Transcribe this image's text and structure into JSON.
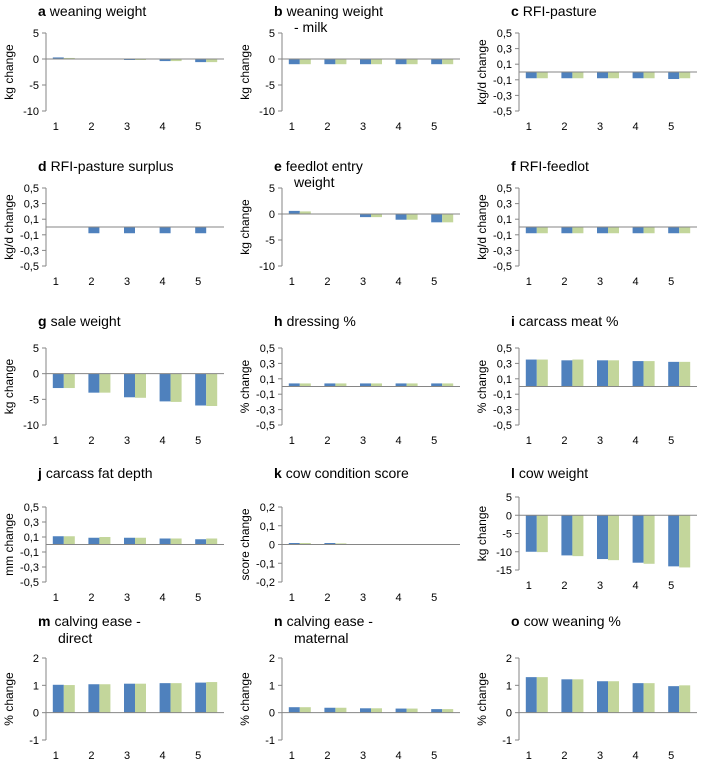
{
  "colors": {
    "series1": "#4f81bd",
    "series2": "#c3d69b",
    "axis": "#868686"
  },
  "chart_data": [
    {
      "id": "a",
      "type": "bar",
      "letter": "a",
      "title": "weaning weight",
      "ylabel": "kg change",
      "ylim": [
        -10,
        5
      ],
      "yticks": [
        "5",
        "0",
        "-5",
        "-10"
      ],
      "tick_values": [
        5,
        0,
        -5,
        -10
      ],
      "categories": [
        "1",
        "2",
        "3",
        "4",
        "5"
      ],
      "series": [
        {
          "name": "series-1",
          "values": [
            0.3,
            0.0,
            -0.1,
            -0.4,
            -0.6
          ]
        },
        {
          "name": "series-2",
          "values": [
            0.2,
            0.0,
            -0.1,
            -0.4,
            -0.6
          ]
        }
      ]
    },
    {
      "id": "b",
      "type": "bar",
      "letter": "b",
      "title": "weaning weight",
      "subtitle": "- milk",
      "ylabel": "kg change",
      "ylim": [
        -10,
        5
      ],
      "yticks": [
        "5",
        "0",
        "-5",
        "-10"
      ],
      "tick_values": [
        5,
        0,
        -5,
        -10
      ],
      "categories": [
        "1",
        "2",
        "3",
        "4",
        "5"
      ],
      "series": [
        {
          "name": "series-1",
          "values": [
            -1.0,
            -1.0,
            -1.0,
            -1.0,
            -1.0
          ]
        },
        {
          "name": "series-2",
          "values": [
            -1.0,
            -1.0,
            -1.0,
            -1.0,
            -1.0
          ]
        }
      ]
    },
    {
      "id": "c",
      "type": "bar",
      "letter": "c",
      "title": "RFI-pasture",
      "ylabel": "kg/d change",
      "ylim": [
        -0.5,
        0.5
      ],
      "yticks": [
        "0,5",
        "0,3",
        "0,1",
        "-0,1",
        "-0,3",
        "-0,5"
      ],
      "tick_values": [
        0.5,
        0.3,
        0.1,
        -0.1,
        -0.3,
        -0.5
      ],
      "categories": [
        "1",
        "2",
        "3",
        "4",
        "5"
      ],
      "series": [
        {
          "name": "series-1",
          "values": [
            -0.08,
            -0.08,
            -0.08,
            -0.08,
            -0.09
          ]
        },
        {
          "name": "series-2",
          "values": [
            -0.08,
            -0.08,
            -0.08,
            -0.08,
            -0.08
          ]
        }
      ]
    },
    {
      "id": "d",
      "type": "bar",
      "letter": "d",
      "title": "RFI-pasture surplus",
      "ylabel": "kg/d change",
      "ylim": [
        -0.5,
        0.5
      ],
      "yticks": [
        "0,5",
        "0,3",
        "0,1",
        "-0,1",
        "-0,3",
        "-0,5"
      ],
      "tick_values": [
        0.5,
        0.3,
        0.1,
        -0.1,
        -0.3,
        -0.5
      ],
      "categories": [
        "1",
        "2",
        "3",
        "4",
        "5"
      ],
      "series": [
        {
          "name": "series-1",
          "values": [
            0,
            -0.08,
            -0.08,
            -0.08,
            -0.08
          ]
        },
        {
          "name": "series-2",
          "values": [
            0,
            0,
            0,
            0,
            0
          ]
        }
      ]
    },
    {
      "id": "e",
      "type": "bar",
      "letter": "e",
      "title": "feedlot entry",
      "subtitle": "weight",
      "ylabel": "kg change",
      "ylim": [
        -10,
        5
      ],
      "yticks": [
        "5",
        "0",
        "-5",
        "-10"
      ],
      "tick_values": [
        5,
        0,
        -5,
        -10
      ],
      "categories": [
        "1",
        "2",
        "3",
        "4",
        "5"
      ],
      "series": [
        {
          "name": "series-1",
          "values": [
            0.6,
            0.0,
            -0.6,
            -1.1,
            -1.6
          ]
        },
        {
          "name": "series-2",
          "values": [
            0.5,
            0.0,
            -0.6,
            -1.1,
            -1.6
          ]
        }
      ]
    },
    {
      "id": "f",
      "type": "bar",
      "letter": "f",
      "title": "RFI-feedlot",
      "ylabel": "kg/d change",
      "ylim": [
        -0.5,
        0.5
      ],
      "yticks": [
        "0,5",
        "0,3",
        "0,1",
        "-0,1",
        "-0,3",
        "-0,5"
      ],
      "tick_values": [
        0.5,
        0.3,
        0.1,
        -0.1,
        -0.3,
        -0.5
      ],
      "categories": [
        "1",
        "2",
        "3",
        "4",
        "5"
      ],
      "series": [
        {
          "name": "series-1",
          "values": [
            -0.08,
            -0.08,
            -0.08,
            -0.08,
            -0.08
          ]
        },
        {
          "name": "series-2",
          "values": [
            -0.08,
            -0.08,
            -0.08,
            -0.08,
            -0.08
          ]
        }
      ]
    },
    {
      "id": "g",
      "type": "bar",
      "letter": "g",
      "title": "sale weight",
      "ylabel": "kg change",
      "ylim": [
        -10,
        5
      ],
      "yticks": [
        "5",
        "0",
        "-5",
        "-10"
      ],
      "tick_values": [
        5,
        0,
        -5,
        -10
      ],
      "categories": [
        "1",
        "2",
        "3",
        "4",
        "5"
      ],
      "series": [
        {
          "name": "series-1",
          "values": [
            -2.8,
            -3.7,
            -4.6,
            -5.4,
            -6.2
          ]
        },
        {
          "name": "series-2",
          "values": [
            -2.8,
            -3.7,
            -4.7,
            -5.5,
            -6.3
          ]
        }
      ]
    },
    {
      "id": "h",
      "type": "bar",
      "letter": "h",
      "title": "dressing %",
      "ylabel": "% change",
      "ylim": [
        -0.5,
        0.5
      ],
      "yticks": [
        "0,5",
        "0,3",
        "0,1",
        "-0,1",
        "-0,3",
        "-0,5"
      ],
      "tick_values": [
        0.5,
        0.3,
        0.1,
        -0.1,
        -0.3,
        -0.5
      ],
      "categories": [
        "1",
        "2",
        "3",
        "4",
        "5"
      ],
      "series": [
        {
          "name": "series-1",
          "values": [
            0.04,
            0.04,
            0.04,
            0.04,
            0.04
          ]
        },
        {
          "name": "series-2",
          "values": [
            0.04,
            0.04,
            0.04,
            0.04,
            0.04
          ]
        }
      ]
    },
    {
      "id": "i",
      "type": "bar",
      "letter": "i",
      "title": "carcass meat %",
      "ylabel": "% change",
      "ylim": [
        -0.5,
        0.5
      ],
      "yticks": [
        "0,5",
        "0,3",
        "0,1",
        "-0,1",
        "-0,3",
        "-0,5"
      ],
      "tick_values": [
        0.5,
        0.3,
        0.1,
        -0.1,
        -0.3,
        -0.5
      ],
      "categories": [
        "1",
        "2",
        "3",
        "4",
        "5"
      ],
      "series": [
        {
          "name": "series-1",
          "values": [
            0.35,
            0.34,
            0.34,
            0.33,
            0.32
          ]
        },
        {
          "name": "series-2",
          "values": [
            0.35,
            0.35,
            0.34,
            0.33,
            0.32
          ]
        }
      ]
    },
    {
      "id": "j",
      "type": "bar",
      "letter": "j",
      "title": "carcass fat depth",
      "ylabel": "mm change",
      "ylim": [
        -0.5,
        0.5
      ],
      "yticks": [
        "0,5",
        "0,3",
        "0,1",
        "-0,1",
        "-0,3",
        "-0,5"
      ],
      "tick_values": [
        0.5,
        0.3,
        0.1,
        -0.1,
        -0.3,
        -0.5
      ],
      "categories": [
        "1",
        "2",
        "3",
        "4",
        "5"
      ],
      "series": [
        {
          "name": "series-1",
          "values": [
            0.11,
            0.09,
            0.09,
            0.08,
            0.07
          ]
        },
        {
          "name": "series-2",
          "values": [
            0.11,
            0.1,
            0.09,
            0.08,
            0.08
          ]
        }
      ]
    },
    {
      "id": "k",
      "type": "bar",
      "letter": "k",
      "title": "cow condition score",
      "ylabel": "score change",
      "ylim": [
        -0.2,
        0.2
      ],
      "yticks": [
        "0,2",
        "0,1",
        "0",
        "-0,1",
        "-0,2"
      ],
      "tick_values": [
        0.2,
        0.1,
        0,
        -0.1,
        -0.2
      ],
      "categories": [
        "1",
        "2",
        "3",
        "4",
        "5"
      ],
      "series": [
        {
          "name": "series-1",
          "values": [
            0.008,
            0.008,
            0.0,
            0.0,
            0.0
          ]
        },
        {
          "name": "series-2",
          "values": [
            0.008,
            0.006,
            0.0,
            0.0,
            0.0
          ]
        }
      ]
    },
    {
      "id": "l",
      "type": "bar",
      "letter": "l",
      "title": "cow weight",
      "ylabel": "kg change",
      "ylim": [
        -15,
        5
      ],
      "yticks": [
        "5",
        "0",
        "-5",
        "-10",
        "-15"
      ],
      "tick_values": [
        5,
        0,
        -5,
        -10,
        -15
      ],
      "categories": [
        "1",
        "2",
        "3",
        "4",
        "5"
      ],
      "series": [
        {
          "name": "series-1",
          "values": [
            -10.0,
            -11.0,
            -12.0,
            -13.0,
            -14.0
          ]
        },
        {
          "name": "series-2",
          "values": [
            -10.1,
            -11.2,
            -12.3,
            -13.3,
            -14.3
          ]
        }
      ]
    },
    {
      "id": "m",
      "type": "bar",
      "letter": "m",
      "title": "calving ease -",
      "subtitle": "direct",
      "ylabel": "% change",
      "ylim": [
        -1,
        2
      ],
      "yticks": [
        "2",
        "1",
        "0",
        "-1"
      ],
      "tick_values": [
        2,
        1,
        0,
        -1
      ],
      "categories": [
        "1",
        "2",
        "3",
        "4",
        "5"
      ],
      "series": [
        {
          "name": "series-1",
          "values": [
            1.02,
            1.04,
            1.06,
            1.08,
            1.1
          ]
        },
        {
          "name": "series-2",
          "values": [
            1.01,
            1.04,
            1.06,
            1.08,
            1.12
          ]
        }
      ]
    },
    {
      "id": "n",
      "type": "bar",
      "letter": "n",
      "title": "calving ease -",
      "subtitle": "maternal",
      "ylabel": "% change",
      "ylim": [
        -1,
        2
      ],
      "yticks": [
        "2",
        "1",
        "0",
        "-1"
      ],
      "tick_values": [
        2,
        1,
        0,
        -1
      ],
      "categories": [
        "1",
        "2",
        "3",
        "4",
        "5"
      ],
      "series": [
        {
          "name": "series-1",
          "values": [
            0.2,
            0.18,
            0.16,
            0.15,
            0.13
          ]
        },
        {
          "name": "series-2",
          "values": [
            0.2,
            0.18,
            0.16,
            0.15,
            0.13
          ]
        }
      ]
    },
    {
      "id": "o",
      "type": "bar",
      "letter": "o",
      "title": "cow weaning %",
      "ylabel": "% change",
      "ylim": [
        -1,
        2
      ],
      "yticks": [
        "2",
        "1",
        "0",
        "-1"
      ],
      "tick_values": [
        2,
        1,
        0,
        -1
      ],
      "categories": [
        "1",
        "2",
        "3",
        "4",
        "5"
      ],
      "series": [
        {
          "name": "series-1",
          "values": [
            1.3,
            1.22,
            1.15,
            1.08,
            0.97
          ]
        },
        {
          "name": "series-2",
          "values": [
            1.3,
            1.22,
            1.15,
            1.08,
            1.0
          ]
        }
      ]
    }
  ]
}
